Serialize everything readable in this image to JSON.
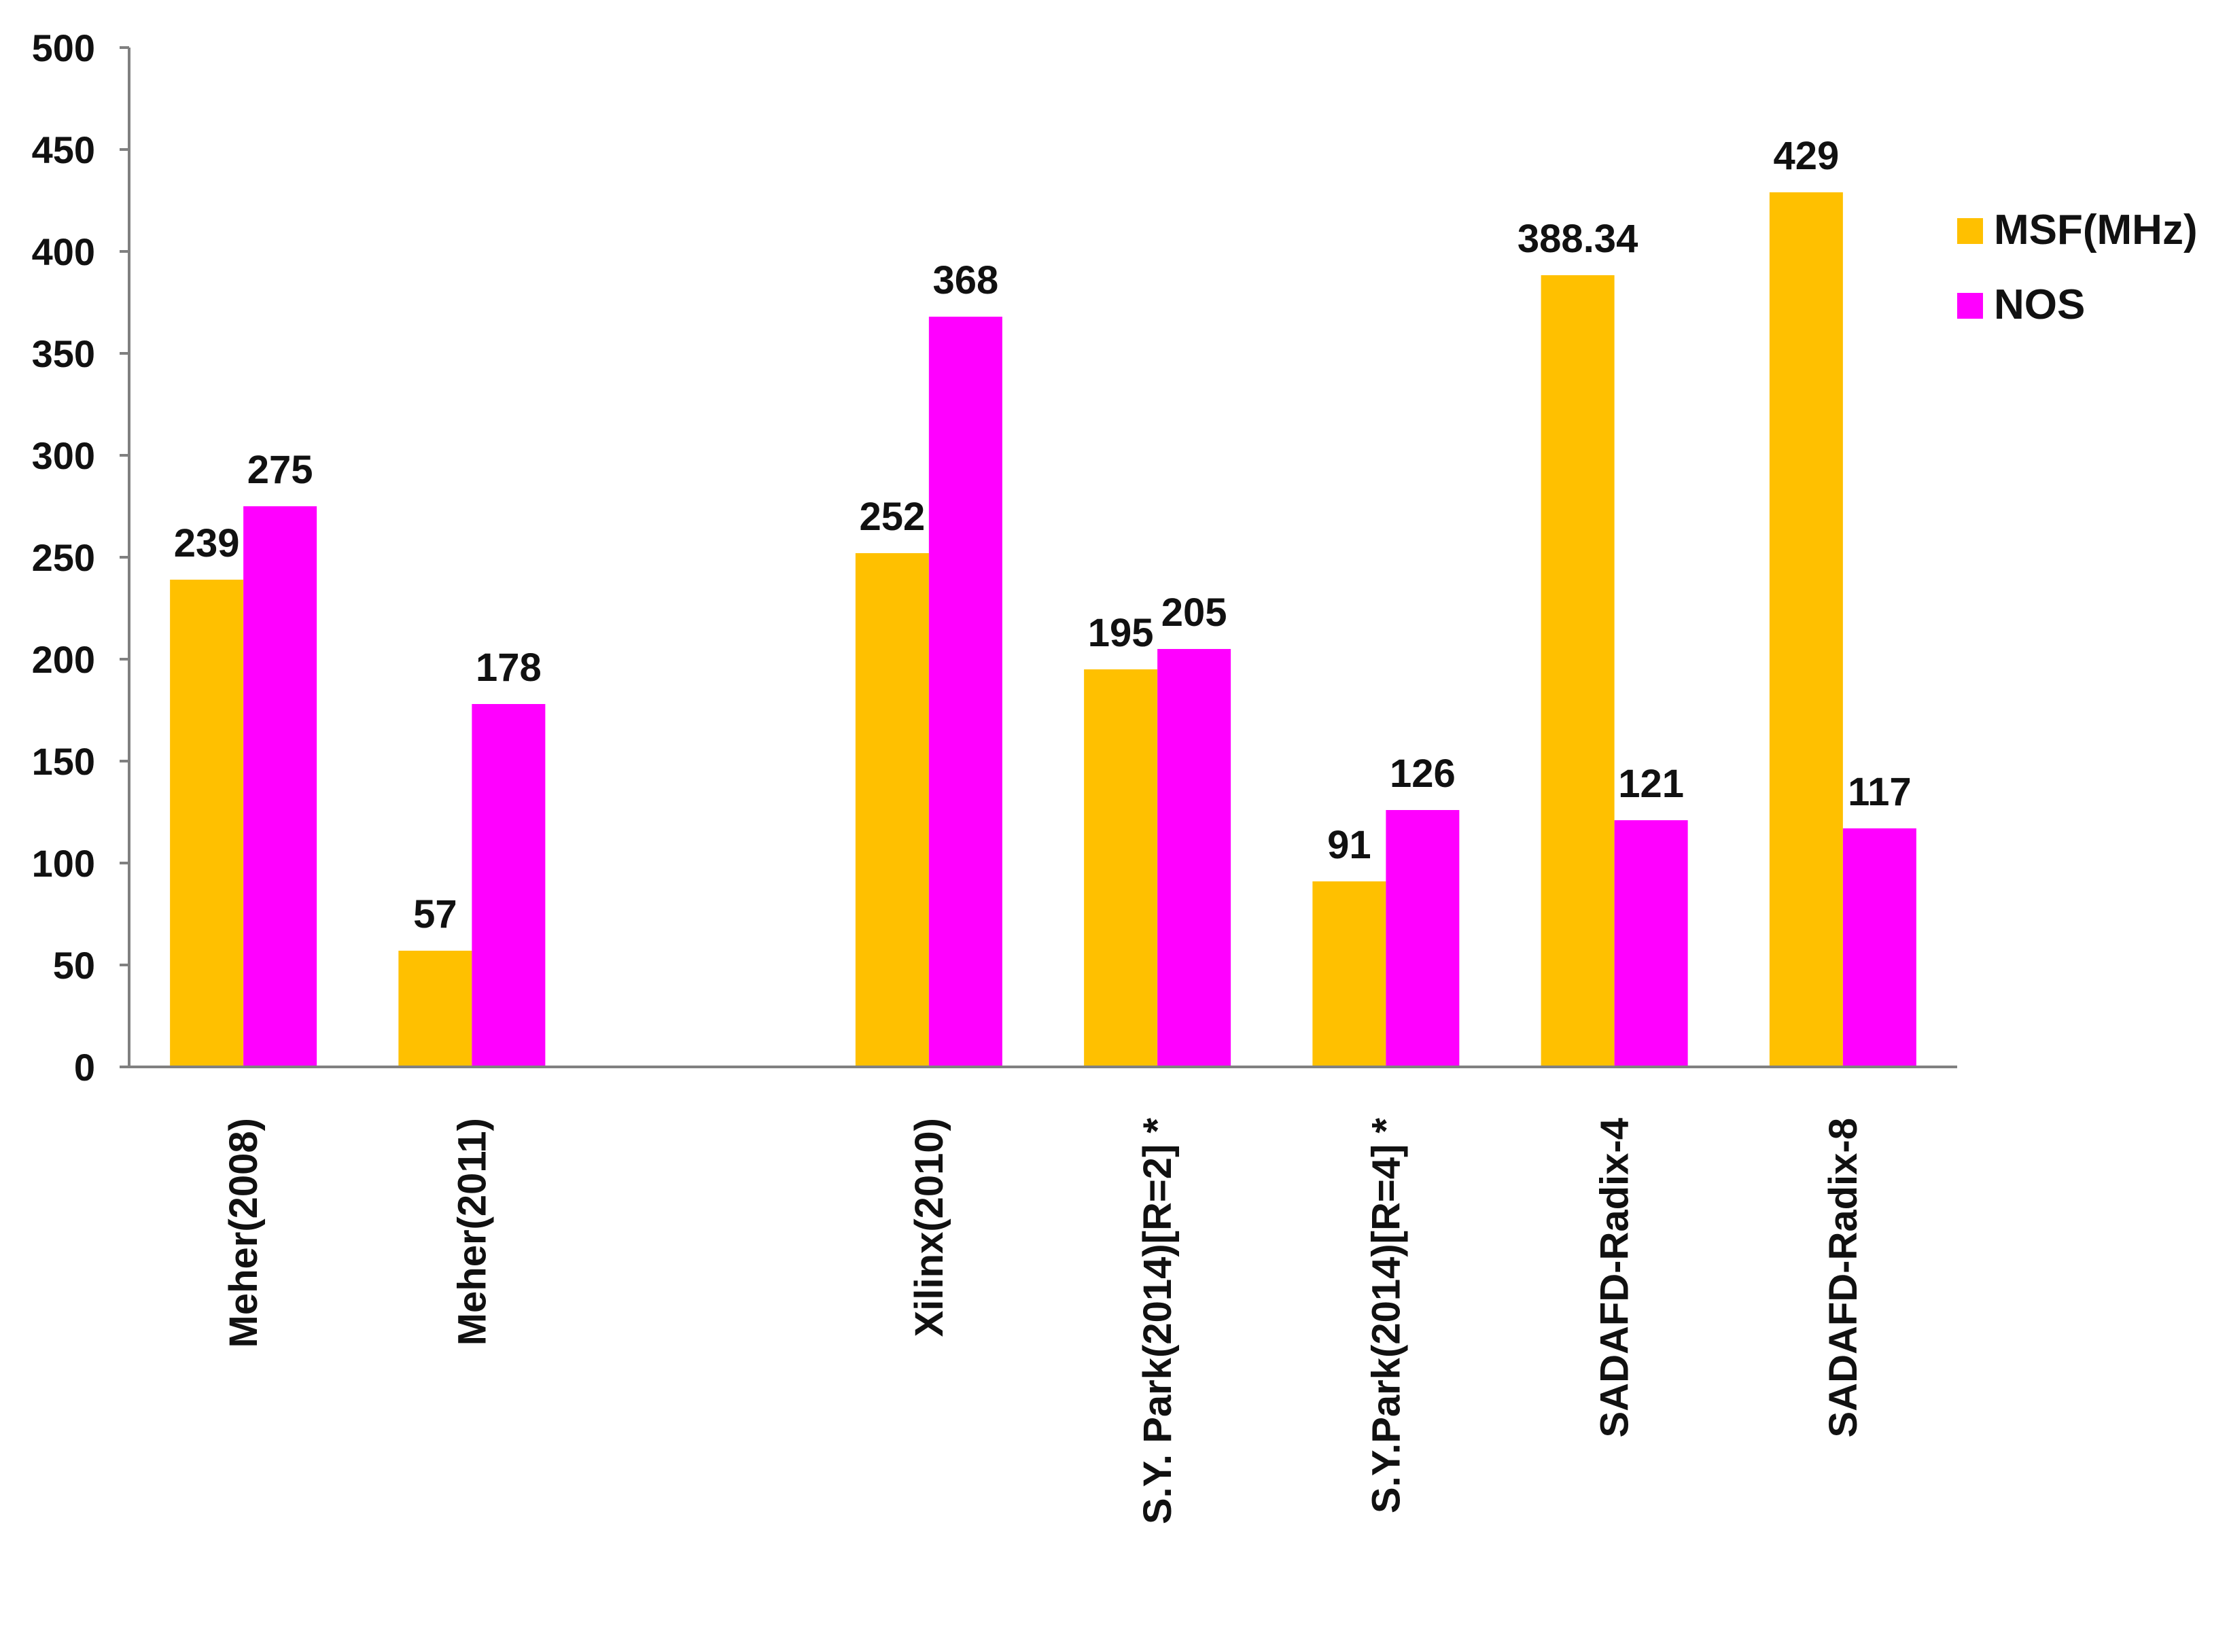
{
  "chart_data": {
    "type": "bar",
    "categories": [
      "Meher(2008)",
      "Meher(2011)",
      "",
      "Xilinx(2010)",
      "S.Y. Park(2014)[R=2] *",
      "S.Y.Park(2014)[R=4] *",
      "SADAFD-Radix-4",
      "SADAFD-Radix-8"
    ],
    "series": [
      {
        "name": "MSF(MHz)",
        "color": "#FFC000",
        "values": [
          239,
          57,
          null,
          252,
          195,
          91,
          388.34,
          429
        ],
        "labels": [
          "239",
          "57",
          "",
          "252",
          "195",
          "91",
          "388.34",
          "429"
        ]
      },
      {
        "name": "NOS",
        "color": "#FF00FF",
        "values": [
          275,
          178,
          null,
          368,
          205,
          126,
          121,
          117
        ],
        "labels": [
          "275",
          "178",
          "",
          "368",
          "205",
          "126",
          "121",
          "117"
        ]
      }
    ],
    "y_ticks": [
      "0",
      "50",
      "100",
      "150",
      "200",
      "250",
      "300",
      "350",
      "400",
      "450",
      "500"
    ],
    "ylim": [
      0,
      500
    ],
    "grid": false,
    "legend_position": "right"
  }
}
